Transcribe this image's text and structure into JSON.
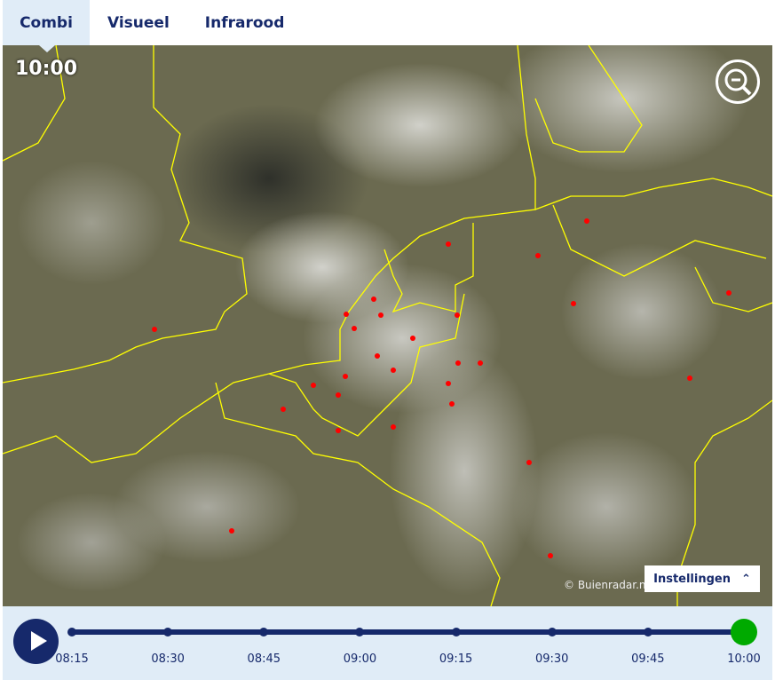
{
  "tabs": [
    {
      "label": "Combi",
      "active": true
    },
    {
      "label": "Visueel"
    },
    {
      "label": "Infrarood"
    }
  ],
  "map": {
    "time": "10:00",
    "copyright": "© Buienradar.nl",
    "settings_label": "Instellingen",
    "settings_icon": "chevron-up-icon",
    "zoom_icon": "zoom-out-icon",
    "border_color": "#ffff00",
    "station_color": "#ff0000"
  },
  "timeline": {
    "play_icon": "play-icon",
    "times": [
      "08:15",
      "08:30",
      "08:45",
      "09:00",
      "09:15",
      "09:30",
      "09:45",
      "10:00"
    ],
    "current": "10:00",
    "accent": "#16296b",
    "current_color": "#00aa00"
  }
}
